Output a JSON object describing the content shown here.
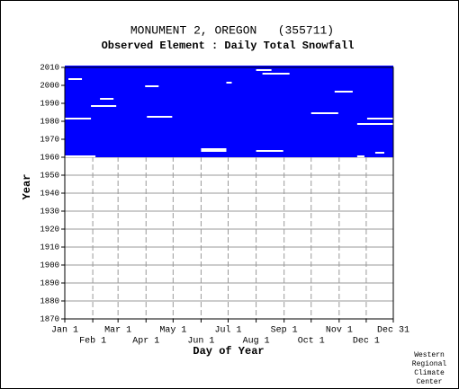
{
  "chart_data": {
    "type": "coverage",
    "title": "MONUMENT 2, OREGON   (355711)",
    "subtitle": "Observed Element : Daily Total Snowfall",
    "xlabel": "Day of Year",
    "ylabel": "Year",
    "credit": [
      "Western",
      "Regional",
      "Climate",
      "Center"
    ],
    "color": "#0000ff",
    "record": {
      "start": 1960,
      "end": 2010
    },
    "gaps": [
      {
        "year": 1960,
        "start": 1,
        "end": 35
      },
      {
        "year": 1981,
        "start": 1,
        "end": 30
      },
      {
        "year": 1988,
        "start": 30,
        "end": 58
      },
      {
        "year": 1982,
        "start": 92,
        "end": 120
      },
      {
        "year": 1964,
        "start": 152,
        "end": 180
      },
      {
        "year": 1963,
        "start": 152,
        "end": 180
      },
      {
        "year": 1963,
        "start": 213,
        "end": 243
      },
      {
        "year": 1984,
        "start": 274,
        "end": 304
      },
      {
        "year": 1981,
        "start": 336,
        "end": 365
      },
      {
        "year": 1978,
        "start": 325,
        "end": 365
      },
      {
        "year": 1962,
        "start": 345,
        "end": 355
      },
      {
        "year": 1960,
        "start": 325,
        "end": 333
      },
      {
        "year": 2008,
        "start": 213,
        "end": 230
      },
      {
        "year": 2006,
        "start": 220,
        "end": 250
      },
      {
        "year": 2001,
        "start": 180,
        "end": 186
      },
      {
        "year": 1999,
        "start": 90,
        "end": 105
      },
      {
        "year": 2003,
        "start": 5,
        "end": 20
      },
      {
        "year": 1996,
        "start": 300,
        "end": 320
      },
      {
        "year": 1992,
        "start": 40,
        "end": 55
      }
    ],
    "xlim": [
      1,
      365
    ],
    "ylim": [
      1870,
      2010
    ],
    "xticks": [
      {
        "value": 1,
        "label": "Jan 1"
      },
      {
        "value": 32,
        "label": "Feb 1"
      },
      {
        "value": 60,
        "label": "Mar 1"
      },
      {
        "value": 91,
        "label": "Apr 1"
      },
      {
        "value": 121,
        "label": "May 1"
      },
      {
        "value": 152,
        "label": "Jun 1"
      },
      {
        "value": 182,
        "label": "Jul 1"
      },
      {
        "value": 213,
        "label": "Aug 1"
      },
      {
        "value": 244,
        "label": "Sep 1"
      },
      {
        "value": 274,
        "label": "Oct 1"
      },
      {
        "value": 305,
        "label": "Nov 1"
      },
      {
        "value": 335,
        "label": "Dec 1"
      },
      {
        "value": 365,
        "label": "Dec 31"
      }
    ],
    "yticks": [
      1870,
      1880,
      1890,
      1900,
      1910,
      1920,
      1930,
      1940,
      1950,
      1960,
      1970,
      1980,
      1990,
      2000,
      2010
    ],
    "grid": true
  }
}
